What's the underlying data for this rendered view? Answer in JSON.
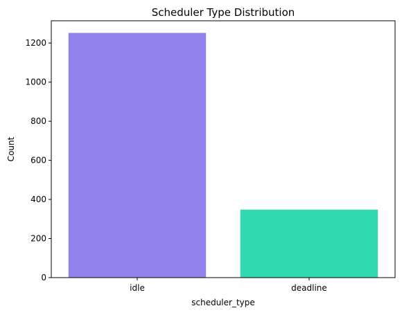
{
  "chart_data": {
    "type": "bar",
    "title": "Scheduler Type Distribution",
    "xlabel": "scheduler_type",
    "ylabel": "Count",
    "categories": [
      "idle",
      "deadline"
    ],
    "values": [
      1252,
      348
    ],
    "colors": [
      "#9083ed",
      "#33d9b1"
    ],
    "ylim": [
      0,
      1314
    ],
    "yticks": [
      0,
      200,
      400,
      600,
      800,
      1000,
      1200
    ],
    "grid": false,
    "legend": "none"
  }
}
